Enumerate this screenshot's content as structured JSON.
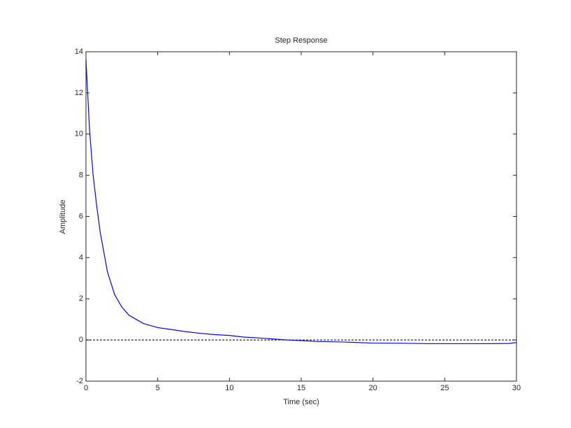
{
  "chart_data": {
    "type": "line",
    "title": "Step Response",
    "x_label": "Time (sec)",
    "y_label": "Amplitude",
    "x": [
      0,
      0.25,
      0.5,
      0.75,
      1,
      1.5,
      2,
      2.5,
      3,
      3.5,
      4,
      5,
      6,
      7,
      8,
      9,
      10,
      11,
      12,
      13,
      14,
      15,
      16,
      18,
      20,
      22,
      24,
      26,
      28,
      29.5,
      30
    ],
    "series": [
      {
        "color": "#0000ff",
        "values": [
          13.6,
          10.2,
          8.0,
          6.5,
          5.2,
          3.3,
          2.2,
          1.6,
          1.2,
          1.0,
          0.8,
          0.6,
          0.5,
          0.4,
          0.32,
          0.26,
          0.22,
          0.14,
          0.1,
          0.05,
          0.0,
          -0.03,
          -0.07,
          -0.1,
          -0.15,
          -0.16,
          -0.18,
          -0.18,
          -0.18,
          -0.17,
          -0.12
        ]
      }
    ],
    "reference_line": 0,
    "xlim": [
      0,
      30
    ],
    "xticks": [
      0,
      5,
      10,
      15,
      20,
      25,
      30
    ],
    "ylim": [
      -2,
      14
    ],
    "yticks": [
      -2,
      0,
      2,
      4,
      6,
      8,
      10,
      12,
      14
    ]
  }
}
